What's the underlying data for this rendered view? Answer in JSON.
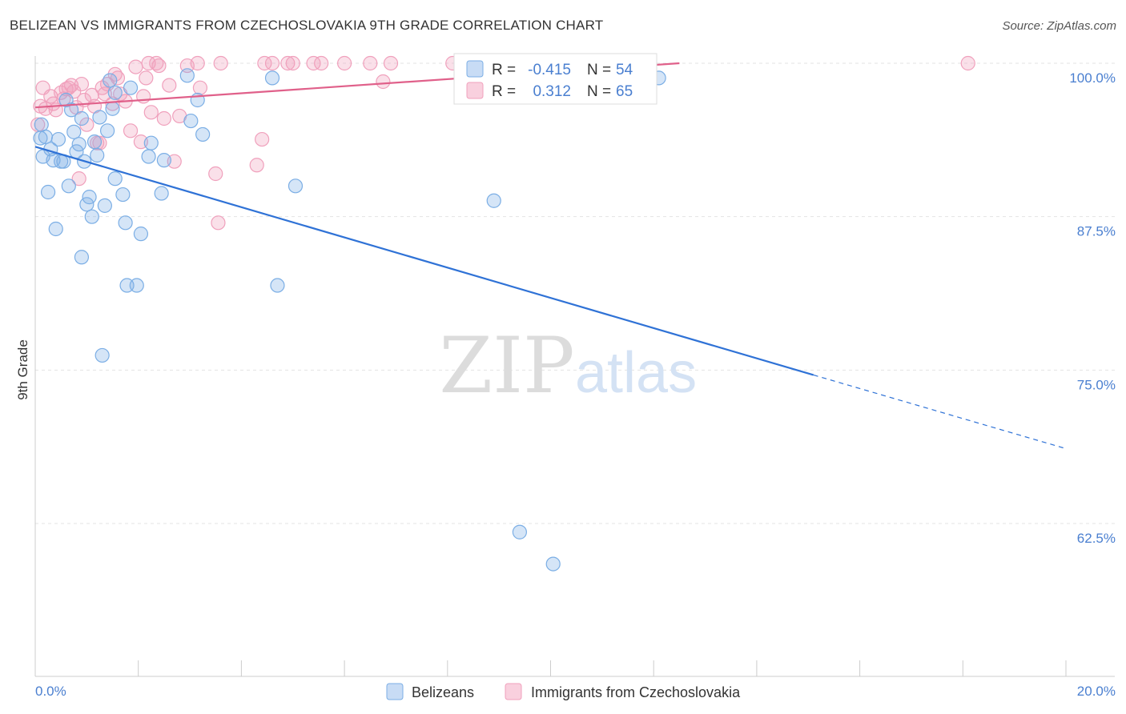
{
  "title": "BELIZEAN VS IMMIGRANTS FROM CZECHOSLOVAKIA 9TH GRADE CORRELATION CHART",
  "source": "Source: ZipAtlas.com",
  "watermark": {
    "zip": "ZIP",
    "atlas": "atlas"
  },
  "colors": {
    "blue": "#7baee5",
    "blue_line": "#2f72d6",
    "pink": "#f0a0bc",
    "pink_line": "#e0608a",
    "tick_label": "#4a7fd0",
    "grid": "#e3e3e3"
  },
  "legend_box": {
    "rows": [
      {
        "r_label": "R =",
        "r_value": "-0.415",
        "n_label": "N =",
        "n_value": "54"
      },
      {
        "r_label": "R =",
        "r_value": "0.312",
        "n_label": "N =",
        "n_value": "65"
      }
    ]
  },
  "bottom_legend": {
    "items": [
      {
        "label": "Belizeans"
      },
      {
        "label": "Immigrants from Czechoslovakia"
      }
    ]
  },
  "chart_data": {
    "type": "scatter",
    "title": "BELIZEAN VS IMMIGRANTS FROM CZECHOSLOVAKIA 9TH GRADE CORRELATION CHART",
    "xlabel": "",
    "ylabel": "9th Grade",
    "xlim": [
      0,
      20
    ],
    "ylim": [
      50,
      100.5
    ],
    "x_ticks": [
      "0.0%",
      "20.0%"
    ],
    "y_ticks": [
      {
        "value": 100,
        "label": "100.0%"
      },
      {
        "value": 87.5,
        "label": "87.5%"
      },
      {
        "value": 75,
        "label": "75.0%"
      },
      {
        "value": 62.5,
        "label": "62.5%"
      }
    ],
    "grid": true,
    "legend_position": "top-center",
    "series": [
      {
        "name": "Belizeans",
        "color": "#7baee5",
        "r": -0.415,
        "n": 54,
        "trend": {
          "x0": 0,
          "y0": 93.2,
          "x1": 15.1,
          "y1": 74.6,
          "dash_x1": 20,
          "dash_y1": 68.6
        },
        "points": [
          [
            0.1,
            93.9
          ],
          [
            0.15,
            92.4
          ],
          [
            0.25,
            89.5
          ],
          [
            0.3,
            93.0
          ],
          [
            0.35,
            92.1
          ],
          [
            0.4,
            86.5
          ],
          [
            0.45,
            93.8
          ],
          [
            0.5,
            92.0
          ],
          [
            0.6,
            97.0
          ],
          [
            0.65,
            90.0
          ],
          [
            0.7,
            96.2
          ],
          [
            0.75,
            94.4
          ],
          [
            0.8,
            92.8
          ],
          [
            0.85,
            93.4
          ],
          [
            0.9,
            84.2
          ],
          [
            0.9,
            95.5
          ],
          [
            0.95,
            92.0
          ],
          [
            1.0,
            88.5
          ],
          [
            1.05,
            89.1
          ],
          [
            1.1,
            87.5
          ],
          [
            1.15,
            93.6
          ],
          [
            1.2,
            92.5
          ],
          [
            1.25,
            95.6
          ],
          [
            1.3,
            76.2
          ],
          [
            1.35,
            88.4
          ],
          [
            1.4,
            94.5
          ],
          [
            1.45,
            98.6
          ],
          [
            1.5,
            96.3
          ],
          [
            1.55,
            97.6
          ],
          [
            1.55,
            90.6
          ],
          [
            1.7,
            89.3
          ],
          [
            1.75,
            87.0
          ],
          [
            1.78,
            81.9
          ],
          [
            1.85,
            98.0
          ],
          [
            1.97,
            81.9
          ],
          [
            2.05,
            86.1
          ],
          [
            2.2,
            92.4
          ],
          [
            2.25,
            93.5
          ],
          [
            2.45,
            89.4
          ],
          [
            2.5,
            92.1
          ],
          [
            2.95,
            99.0
          ],
          [
            3.02,
            95.3
          ],
          [
            3.15,
            97.0
          ],
          [
            3.25,
            94.2
          ],
          [
            4.6,
            98.8
          ],
          [
            4.7,
            81.9
          ],
          [
            5.05,
            90.0
          ],
          [
            8.9,
            88.8
          ],
          [
            9.4,
            61.8
          ],
          [
            10.05,
            59.2
          ],
          [
            12.1,
            98.8
          ],
          [
            0.12,
            95.0
          ],
          [
            0.55,
            92.0
          ],
          [
            0.2,
            94.0
          ]
        ]
      },
      {
        "name": "Immigrants from Czechoslovakia",
        "color": "#f0a0bc",
        "r": 0.312,
        "n": 65,
        "trend": {
          "x0": 0,
          "y0": 96.4,
          "x1": 12.5,
          "y1": 100.0
        },
        "points": [
          [
            0.05,
            95.0
          ],
          [
            0.1,
            96.5
          ],
          [
            0.2,
            96.3
          ],
          [
            0.3,
            97.3
          ],
          [
            0.35,
            96.7
          ],
          [
            0.4,
            96.2
          ],
          [
            0.5,
            97.6
          ],
          [
            0.55,
            97.1
          ],
          [
            0.6,
            97.9
          ],
          [
            0.65,
            98.0
          ],
          [
            0.7,
            98.2
          ],
          [
            0.75,
            97.7
          ],
          [
            0.8,
            96.4
          ],
          [
            0.85,
            90.6
          ],
          [
            0.9,
            98.3
          ],
          [
            0.95,
            97.0
          ],
          [
            1.0,
            95.0
          ],
          [
            1.1,
            97.4
          ],
          [
            1.15,
            96.5
          ],
          [
            1.2,
            93.5
          ],
          [
            1.25,
            93.5
          ],
          [
            1.3,
            98.0
          ],
          [
            1.35,
            97.5
          ],
          [
            1.4,
            98.3
          ],
          [
            1.5,
            96.7
          ],
          [
            1.55,
            99.1
          ],
          [
            1.6,
            98.8
          ],
          [
            1.65,
            97.5
          ],
          [
            1.75,
            96.9
          ],
          [
            1.85,
            94.5
          ],
          [
            1.95,
            99.7
          ],
          [
            2.05,
            93.6
          ],
          [
            2.1,
            97.3
          ],
          [
            2.15,
            98.8
          ],
          [
            2.2,
            100.0
          ],
          [
            2.25,
            96.0
          ],
          [
            2.35,
            100.0
          ],
          [
            2.4,
            99.8
          ],
          [
            2.5,
            95.5
          ],
          [
            2.6,
            98.2
          ],
          [
            2.7,
            92.0
          ],
          [
            2.8,
            95.7
          ],
          [
            2.95,
            99.8
          ],
          [
            3.15,
            100.0
          ],
          [
            3.2,
            98.0
          ],
          [
            3.5,
            91.0
          ],
          [
            3.55,
            87.0
          ],
          [
            3.6,
            100.0
          ],
          [
            4.3,
            91.7
          ],
          [
            4.4,
            93.8
          ],
          [
            4.45,
            100.0
          ],
          [
            4.6,
            100.0
          ],
          [
            4.9,
            100.0
          ],
          [
            5.0,
            100.0
          ],
          [
            5.4,
            100.0
          ],
          [
            5.55,
            100.0
          ],
          [
            6.0,
            100.0
          ],
          [
            6.5,
            100.0
          ],
          [
            6.75,
            98.5
          ],
          [
            6.9,
            100.0
          ],
          [
            8.1,
            100.0
          ],
          [
            9.9,
            100.0
          ],
          [
            11.0,
            100.0
          ],
          [
            18.1,
            100.0
          ],
          [
            0.15,
            98.0
          ]
        ]
      }
    ]
  }
}
